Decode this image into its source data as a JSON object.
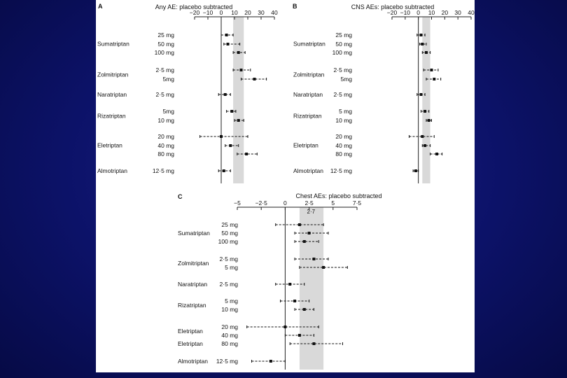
{
  "chart_data": [
    {
      "panel_label": "A",
      "type": "scatter",
      "title": "Any AE: placebo subtracted",
      "xlim": [
        -20,
        40
      ],
      "xticks": [
        -20,
        -10,
        0,
        10,
        20,
        30,
        40
      ],
      "shaded_band": [
        9,
        17
      ],
      "drugs": [
        {
          "name": "Sumatriptan",
          "doses": [
            {
              "dose": "25 mg",
              "estimate": 4,
              "low": 0,
              "high": 9
            },
            {
              "dose": "50 mg",
              "estimate": 5,
              "low": 2,
              "high": 14
            },
            {
              "dose": "100 mg",
              "estimate": 13,
              "low": 9,
              "high": 18
            }
          ]
        },
        {
          "name": "Zolmitriptan",
          "doses": [
            {
              "dose": "2·5 mg",
              "estimate": 15,
              "low": 9,
              "high": 22
            },
            {
              "dose": "5mg",
              "estimate": 25,
              "low": 15,
              "high": 34
            }
          ]
        },
        {
          "name": "Naratriptan",
          "doses": [
            {
              "dose": "2·5 mg",
              "estimate": 3,
              "low": -2,
              "high": 7
            }
          ]
        },
        {
          "name": "Rizatriptan",
          "doses": [
            {
              "dose": "5mg",
              "estimate": 8,
              "low": 4,
              "high": 11
            },
            {
              "dose": "10 mg",
              "estimate": 13,
              "low": 10,
              "high": 17
            }
          ]
        },
        {
          "name": "Eletriptan",
          "doses": [
            {
              "dose": "20 mg",
              "estimate": 0,
              "low": -16,
              "high": 20
            },
            {
              "dose": "40 mg",
              "estimate": 7,
              "low": 3,
              "high": 13
            },
            {
              "dose": "80 mg",
              "estimate": 19,
              "low": 12,
              "high": 27
            }
          ]
        },
        {
          "name": "Almotriptan",
          "doses": [
            {
              "dose": "12·5 mg",
              "estimate": 2,
              "low": -2,
              "high": 7
            }
          ]
        }
      ]
    },
    {
      "panel_label": "B",
      "type": "scatter",
      "title": "CNS AEs: placebo subtracted",
      "xlim": [
        -20,
        40
      ],
      "xticks": [
        -20,
        -10,
        0,
        10,
        20,
        30,
        40
      ],
      "shaded_band": [
        3,
        9
      ],
      "drugs": [
        {
          "name": "Sumatriptan",
          "doses": [
            {
              "dose": "25 mg",
              "estimate": 2,
              "low": -1,
              "high": 5
            },
            {
              "dose": "50 mg",
              "estimate": 3,
              "low": 1,
              "high": 6
            },
            {
              "dose": "100 mg",
              "estimate": 6,
              "low": 3,
              "high": 9
            }
          ]
        },
        {
          "name": "Zolmitriptan",
          "doses": [
            {
              "dose": "2·5 mg",
              "estimate": 10,
              "low": 4,
              "high": 15
            },
            {
              "dose": "5mg",
              "estimate": 12,
              "low": 6,
              "high": 17
            }
          ]
        },
        {
          "name": "Naratriptan",
          "doses": [
            {
              "dose": "2·5 mg",
              "estimate": 2,
              "low": -1,
              "high": 5
            }
          ]
        },
        {
          "name": "Rizatriptan",
          "doses": [
            {
              "dose": "5 mg",
              "estimate": 5,
              "low": 2,
              "high": 8
            },
            {
              "dose": "10 mg",
              "estimate": 8,
              "low": 6,
              "high": 10
            }
          ]
        },
        {
          "name": "Eletriptan",
          "doses": [
            {
              "dose": "20 mg",
              "estimate": 3,
              "low": -7,
              "high": 12
            },
            {
              "dose": "40 mg",
              "estimate": 5,
              "low": 3,
              "high": 9
            },
            {
              "dose": "80 mg",
              "estimate": 14,
              "low": 9,
              "high": 18
            }
          ]
        },
        {
          "name": "Almotriptan",
          "doses": [
            {
              "dose": "12·5 mg",
              "estimate": -2,
              "low": -4,
              "high": 0
            }
          ]
        }
      ]
    },
    {
      "panel_label": "C",
      "type": "scatter",
      "title": "Chest AEs: placebo subtracted",
      "xlim": [
        -5,
        7.5
      ],
      "xticks": [
        -5,
        -2.5,
        0,
        2.5,
        5,
        7.5
      ],
      "xtick_labels": [
        "−5",
        "−2·5",
        "0",
        "2·5",
        "5",
        "7·5"
      ],
      "reference_label": "2·7",
      "shaded_band": [
        1.5,
        4
      ],
      "drugs": [
        {
          "name": "Sumatriptan",
          "doses": [
            {
              "dose": "25 mg",
              "estimate": 1.5,
              "low": -1,
              "high": 4
            },
            {
              "dose": "50 mg",
              "estimate": 2.5,
              "low": 1,
              "high": 4.5
            },
            {
              "dose": "100 mg",
              "estimate": 2,
              "low": 1,
              "high": 3.5
            }
          ]
        },
        {
          "name": "Zolmitriptan",
          "doses": [
            {
              "dose": "2·5 mg",
              "estimate": 3,
              "low": 1,
              "high": 4.5
            },
            {
              "dose": "5 mg",
              "estimate": 4,
              "low": 1.5,
              "high": 6.5
            }
          ]
        },
        {
          "name": "Naratriptan",
          "doses": [
            {
              "dose": "2·5 mg",
              "estimate": 0.5,
              "low": -1,
              "high": 2
            }
          ]
        },
        {
          "name": "Rizatriptan",
          "doses": [
            {
              "dose": "5 mg",
              "estimate": 1,
              "low": -0.5,
              "high": 2.5
            },
            {
              "dose": "10 mg",
              "estimate": 2,
              "low": 1,
              "high": 3
            }
          ]
        },
        {
          "name": "Eletriptan",
          "doses": [
            {
              "dose": "20 mg",
              "estimate": 0,
              "low": -4,
              "high": 3.5
            },
            {
              "dose": "40 mg",
              "estimate": 1.5,
              "low": 0,
              "high": 3
            }
          ]
        },
        {
          "name": "Eletriptan",
          "doses": [
            {
              "dose": "80 mg",
              "estimate": 3,
              "low": 0.5,
              "high": 6
            }
          ]
        },
        {
          "name": "Almotriptan",
          "doses": [
            {
              "dose": "12·5 mg",
              "estimate": -1.5,
              "low": -3.5,
              "high": 0
            }
          ]
        }
      ]
    }
  ]
}
